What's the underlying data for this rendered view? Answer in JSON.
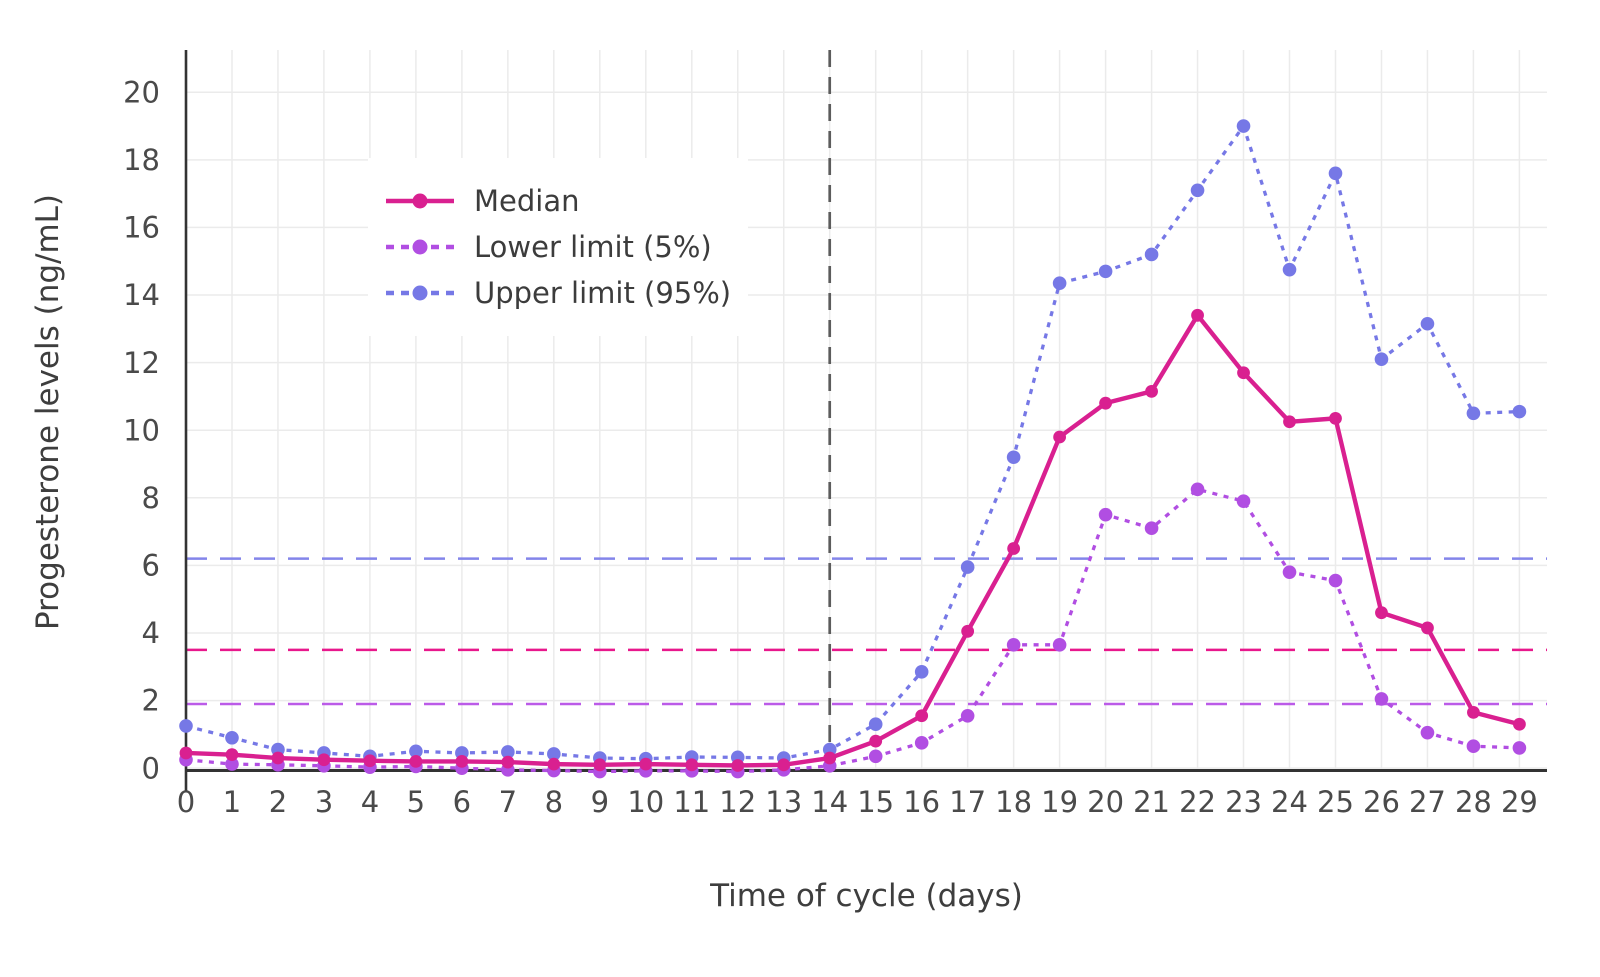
{
  "axes": {
    "x_title": "Time of cycle (days)",
    "y_title": "Progesterone levels (ng/mL)",
    "x_ticks": [
      0,
      1,
      2,
      3,
      4,
      5,
      6,
      7,
      8,
      9,
      10,
      11,
      12,
      13,
      14,
      15,
      16,
      17,
      18,
      19,
      20,
      21,
      22,
      23,
      24,
      25,
      26,
      27,
      28,
      29
    ],
    "y_ticks": [
      0,
      2,
      4,
      6,
      8,
      10,
      12,
      14,
      16,
      18,
      20
    ],
    "tick_color": "#4a4a4a",
    "axis_line_color": "#333333",
    "grid_color": "#ebebeb"
  },
  "legend": {
    "items": [
      {
        "label": "Median"
      },
      {
        "label": "Lower limit (5%)"
      },
      {
        "label": "Upper limit (95%)"
      }
    ]
  },
  "chart_data": {
    "type": "line",
    "title": "",
    "xlabel": "Time of cycle (days)",
    "ylabel": "Progesterone levels (ng/mL)",
    "xlim": [
      0,
      29.6
    ],
    "ylim": [
      -0.35,
      21.25
    ],
    "grid": true,
    "legend_position": "upper-left-inside",
    "x": [
      0,
      1,
      2,
      3,
      4,
      5,
      6,
      7,
      8,
      9,
      10,
      11,
      12,
      13,
      14,
      15,
      16,
      17,
      18,
      19,
      20,
      21,
      22,
      23,
      24,
      25,
      26,
      27,
      28,
      29
    ],
    "series": [
      {
        "name": "Median",
        "color": "#D92090",
        "line_style": "solid",
        "values": [
          0.45,
          0.4,
          0.3,
          0.25,
          0.22,
          0.2,
          0.2,
          0.18,
          0.12,
          0.1,
          0.12,
          0.1,
          0.08,
          0.1,
          0.3,
          0.8,
          1.55,
          4.05,
          6.5,
          9.8,
          10.8,
          11.15,
          13.4,
          11.7,
          10.25,
          10.35,
          4.6,
          4.15,
          1.65,
          1.3
        ]
      },
      {
        "name": "Lower limit (5%)",
        "color": "#B14EE2",
        "line_style": "dashed",
        "values": [
          0.25,
          0.12,
          0.1,
          0.07,
          0.03,
          0.05,
          0.0,
          -0.05,
          -0.07,
          -0.1,
          -0.08,
          -0.08,
          -0.1,
          -0.05,
          0.07,
          0.35,
          0.75,
          1.55,
          3.65,
          3.65,
          7.5,
          7.1,
          8.25,
          7.9,
          5.8,
          5.55,
          2.05,
          1.05,
          0.65,
          0.6
        ]
      },
      {
        "name": "Upper limit (95%)",
        "color": "#7678E6",
        "line_style": "dashed",
        "values": [
          1.25,
          0.9,
          0.55,
          0.45,
          0.35,
          0.5,
          0.45,
          0.48,
          0.42,
          0.3,
          0.28,
          0.33,
          0.32,
          0.3,
          0.55,
          1.3,
          2.85,
          5.95,
          9.2,
          14.35,
          14.7,
          15.2,
          17.1,
          19.0,
          14.75,
          17.6,
          12.1,
          13.15,
          10.5,
          10.55
        ]
      }
    ],
    "reference_lines": {
      "horizontal": [
        {
          "value": 6.2,
          "color": "#8385EA",
          "style": "long-dash"
        },
        {
          "value": 3.5,
          "color": "#E8188C",
          "style": "long-dash"
        },
        {
          "value": 1.9,
          "color": "#BB5BE8",
          "style": "long-dash"
        }
      ],
      "vertical": [
        {
          "value": 14,
          "color": "#5c5c5c",
          "style": "long-dash"
        }
      ]
    }
  }
}
